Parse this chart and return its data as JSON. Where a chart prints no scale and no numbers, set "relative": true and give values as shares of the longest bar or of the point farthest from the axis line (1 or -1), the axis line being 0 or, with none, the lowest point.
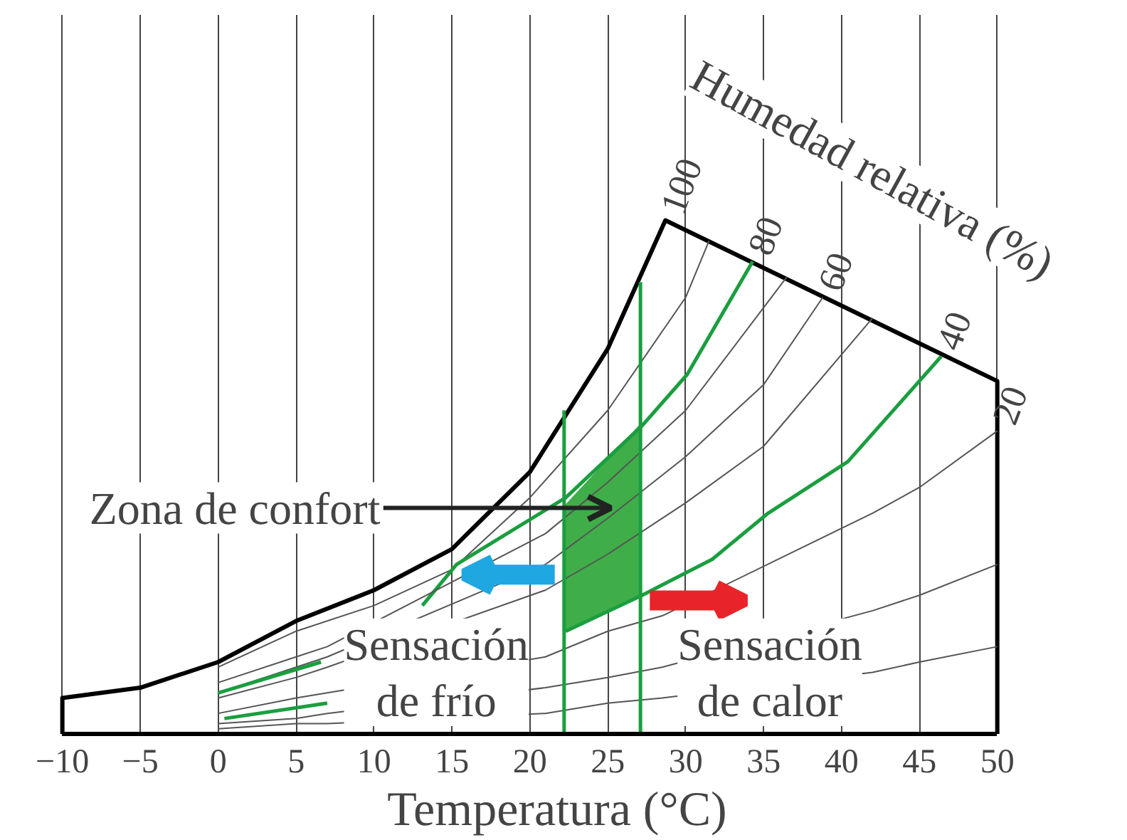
{
  "chart_data": {
    "type": "line",
    "relative": true,
    "xlabel": "Temperatura (°C)",
    "xlim": [
      -10,
      50
    ],
    "xticks": [
      -10,
      -5,
      0,
      5,
      10,
      15,
      20,
      25,
      30,
      35,
      40,
      45,
      50
    ],
    "grid": "x",
    "series": [
      {
        "type": "area",
        "color": "#3fae49",
        "x": [
          22.2,
          22.2,
          27.1,
          27.1,
          22.2
        ],
        "values": [
          0.2,
          0.44,
          0.6,
          0.27,
          0.2
        ]
      },
      {
        "color": "#000000",
        "x": [
          -10,
          -10,
          -5,
          0,
          5,
          10,
          15,
          20,
          25,
          28.7,
          50,
          50
        ],
        "values": [
          0,
          0.07,
          0.09,
          0.14,
          0.22,
          0.28,
          0.36,
          0.51,
          0.75,
          1.0,
          0.687,
          0
        ]
      },
      {
        "color": "#555555",
        "x": [
          0,
          5,
          10,
          15,
          20,
          25,
          30,
          31.5
        ],
        "values": [
          0.13,
          0.2,
          0.25,
          0.32,
          0.46,
          0.63,
          0.85,
          0.96
        ]
      },
      {
        "color": "#1a9e3f",
        "x": [
          13.1,
          15.3,
          22.3,
          27.2,
          30.1,
          34.3
        ],
        "values": [
          0.25,
          0.33,
          0.46,
          0.6,
          0.7,
          0.92
        ]
      },
      {
        "color": "#555555",
        "x": [
          0,
          5,
          7,
          21,
          25,
          30,
          36.5
        ],
        "values": [
          0.1,
          0.15,
          0.17,
          0.39,
          0.49,
          0.63,
          0.89
        ]
      },
      {
        "color": "#555555",
        "x": [
          0,
          5,
          7,
          21,
          25,
          30,
          35,
          38.8
        ],
        "values": [
          0.08,
          0.13,
          0.15,
          0.33,
          0.42,
          0.54,
          0.68,
          0.85
        ]
      },
      {
        "color": "#555555",
        "x": [
          0,
          5,
          7,
          21,
          25,
          30,
          35,
          42
        ],
        "values": [
          0.07,
          0.11,
          0.13,
          0.28,
          0.35,
          0.45,
          0.56,
          0.81
        ]
      },
      {
        "color": "#1a9e3f",
        "x": [
          22.3,
          27.2,
          31.7,
          35.3,
          40.4,
          46.4
        ],
        "values": [
          0.2,
          0.27,
          0.34,
          0.43,
          0.53,
          0.735
        ]
      },
      {
        "color": "#555555",
        "x": [
          0,
          5,
          7,
          21,
          25,
          28.5,
          42,
          45,
          50
        ],
        "values": [
          0.04,
          0.07,
          0.08,
          0.15,
          0.2,
          0.23,
          0.43,
          0.48,
          0.59
        ]
      },
      {
        "color": "#555555",
        "x": [
          0,
          5,
          7,
          21,
          25,
          28.5,
          42,
          45,
          50
        ],
        "values": [
          0.02,
          0.03,
          0.04,
          0.09,
          0.11,
          0.13,
          0.24,
          0.27,
          0.33
        ]
      },
      {
        "color": "#555555",
        "x": [
          0,
          5,
          7,
          21,
          25,
          28.5,
          42,
          45,
          50
        ],
        "values": [
          0.01,
          0.02,
          0.02,
          0.04,
          0.06,
          0.07,
          0.12,
          0.14,
          0.17
        ]
      },
      {
        "color": "#1a9e3f",
        "x": [
          0,
          6.6
        ],
        "values": [
          0.08,
          0.14
        ]
      },
      {
        "color": "#1a9e3f",
        "x": [
          0.4,
          7
        ],
        "values": [
          0.03,
          0.06
        ]
      },
      {
        "color": "#1a9e3f",
        "x": [
          22.2,
          22.2
        ],
        "values": [
          0,
          0.63
        ]
      },
      {
        "color": "#1a9e3f",
        "x": [
          27.1,
          27.1
        ],
        "values": [
          0,
          0.88
        ]
      }
    ],
    "annotations": [
      "Humedad relativa (%)",
      "Zona de confort",
      "Sensación\nde frío",
      "Sensación\nde calor",
      {
        "text": "100",
        "x": 28.7,
        "y": 1.0
      },
      {
        "text": "80",
        "x": 34.3,
        "y": 0.92
      },
      {
        "text": "60",
        "x": 38.8,
        "y": 0.85
      },
      {
        "text": "40",
        "x": 46.4,
        "y": 0.735
      },
      {
        "text": "20",
        "x": 50,
        "y": 0.59
      }
    ]
  }
}
